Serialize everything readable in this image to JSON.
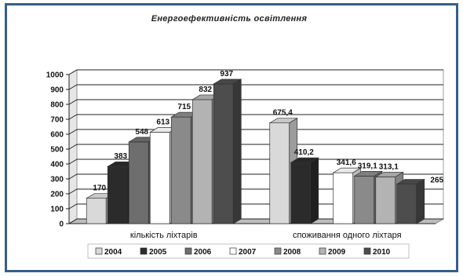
{
  "chart_data": {
    "type": "bar",
    "title": "Енергоефективність освітлення",
    "categories": [
      "кількість ліхтарів",
      "споживання одного ліхтаря"
    ],
    "series": [
      {
        "name": "2004",
        "color": "#d9d9d9",
        "values": [
          170,
          675.4
        ],
        "labels": [
          "170",
          "675,4"
        ]
      },
      {
        "name": "2005",
        "color": "#2b2b2b",
        "values": [
          383,
          410.2
        ],
        "labels": [
          "383",
          "410,2"
        ]
      },
      {
        "name": "2006",
        "color": "#6e6e6e",
        "values": [
          548,
          null
        ],
        "labels": [
          "548",
          ""
        ]
      },
      {
        "name": "2007",
        "color": "#ffffff",
        "values": [
          613,
          341.6
        ],
        "labels": [
          "613",
          "341,6"
        ]
      },
      {
        "name": "2008",
        "color": "#8a8a8a",
        "values": [
          715,
          319.1
        ],
        "labels": [
          "715",
          "319,1"
        ]
      },
      {
        "name": "2009",
        "color": "#b3b3b3",
        "values": [
          832,
          313.1
        ],
        "labels": [
          "832",
          "313,1"
        ]
      },
      {
        "name": "2010",
        "color": "#4d4d4d",
        "values": [
          937,
          265
        ],
        "labels": [
          "937",
          "265"
        ]
      }
    ],
    "ylim": [
      0,
      1000
    ],
    "yticks": [
      0,
      100,
      200,
      300,
      400,
      500,
      600,
      700,
      800,
      900,
      1000
    ],
    "xlabel": "",
    "ylabel": "",
    "grid": true,
    "legend": "bottom"
  }
}
